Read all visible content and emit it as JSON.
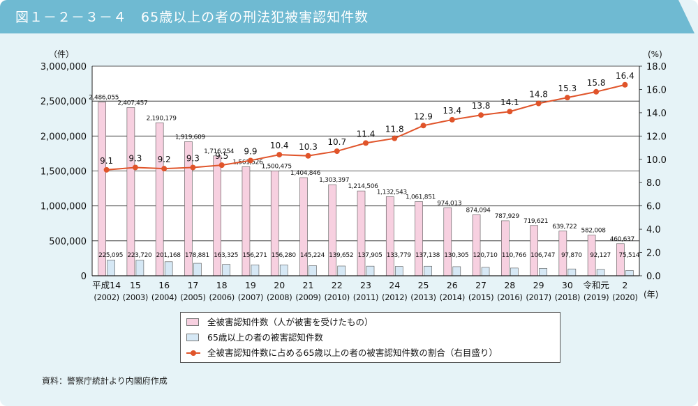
{
  "header": {
    "title": "図１－２－３－４　65歳以上の者の刑法犯被害認知件数"
  },
  "chart_data": {
    "type": "bar",
    "title": "65歳以上の者の刑法犯被害認知件数",
    "left_axis_unit": "（件）",
    "right_axis_unit": "(%)",
    "x_unit": "(年)",
    "left_ylim": [
      0,
      3000000
    ],
    "left_ticks": [
      "0",
      "500,000",
      "1,000,000",
      "1,500,000",
      "2,000,000",
      "2,500,000",
      "3,000,000"
    ],
    "right_ylim": [
      0,
      18
    ],
    "right_ticks": [
      "0.0",
      "2.0",
      "4.0",
      "6.0",
      "8.0",
      "10.0",
      "12.0",
      "14.0",
      "16.0",
      "18.0"
    ],
    "categories": [
      "平成14",
      "15",
      "16",
      "17",
      "18",
      "19",
      "20",
      "21",
      "22",
      "23",
      "24",
      "25",
      "26",
      "27",
      "28",
      "29",
      "30",
      "令和元",
      "2"
    ],
    "categories_sub": [
      "(2002)",
      "(2003)",
      "(2004)",
      "(2005)",
      "(2006)",
      "(2007)",
      "(2008)",
      "(2009)",
      "(2010)",
      "(2011)",
      "(2012)",
      "(2013)",
      "(2014)",
      "(2015)",
      "(2016)",
      "(2017)",
      "(2018)",
      "(2019)",
      "(2020)"
    ],
    "series": [
      {
        "name": "全被害認知件数（人が被害を受けたもの）",
        "kind": "bar",
        "axis": "left",
        "color": "#f7d0e0",
        "values": [
          2486055,
          2407457,
          2190179,
          1919609,
          1716254,
          1561526,
          1500475,
          1404846,
          1303397,
          1214506,
          1132543,
          1061851,
          974013,
          874094,
          787929,
          719621,
          639722,
          582008,
          460637
        ],
        "labels": [
          "2,486,055",
          "2,407,457",
          "2,190,179",
          "1,919,609",
          "1,716,254",
          "1,561,526",
          "1,500,475",
          "1,404,846",
          "1,303,397",
          "1,214,506",
          "1,132,543",
          "1,061,851",
          "974,013",
          "874,094",
          "787,929",
          "719,621",
          "639,722",
          "582,008",
          "460,637"
        ]
      },
      {
        "name": "65歳以上の者の被害認知件数",
        "kind": "bar",
        "axis": "left",
        "color": "#d6e8f5",
        "values": [
          225095,
          223720,
          201168,
          178881,
          163325,
          156271,
          156280,
          145224,
          139652,
          137905,
          133779,
          137138,
          130305,
          120710,
          110766,
          106747,
          97870,
          92127,
          75514
        ],
        "labels": [
          "225,095",
          "223,720",
          "201,168",
          "178,881",
          "163,325",
          "156,271",
          "156,280",
          "145,224",
          "139,652",
          "137,905",
          "133,779",
          "137,138",
          "130,305",
          "120,710",
          "110,766",
          "106,747",
          "97,870",
          "92,127",
          "75,514"
        ]
      },
      {
        "name": "全被害認知件数に占める65歳以上の者の被害認知件数の割合（右目盛り）",
        "kind": "line",
        "axis": "right",
        "color": "#e0542a",
        "values": [
          9.1,
          9.3,
          9.2,
          9.3,
          9.5,
          9.9,
          10.4,
          10.3,
          10.7,
          11.4,
          11.8,
          12.9,
          13.4,
          13.8,
          14.1,
          14.8,
          15.3,
          15.8,
          16.4
        ],
        "labels": [
          "9.1",
          "9.3",
          "9.2",
          "9.3",
          "9.5",
          "9.9",
          "10.4",
          "10.3",
          "10.7",
          "11.4",
          "11.8",
          "12.9",
          "13.4",
          "13.8",
          "14.1",
          "14.8",
          "15.3",
          "15.8",
          "16.4"
        ]
      }
    ]
  },
  "legend": {
    "items": [
      "全被害認知件数（人が被害を受けたもの）",
      "65歳以上の者の被害認知件数",
      "全被害認知件数に占める65歳以上の者の被害認知件数の割合（右目盛り）"
    ]
  },
  "footer": {
    "source": "資料：警察庁統計より内閣府作成"
  }
}
